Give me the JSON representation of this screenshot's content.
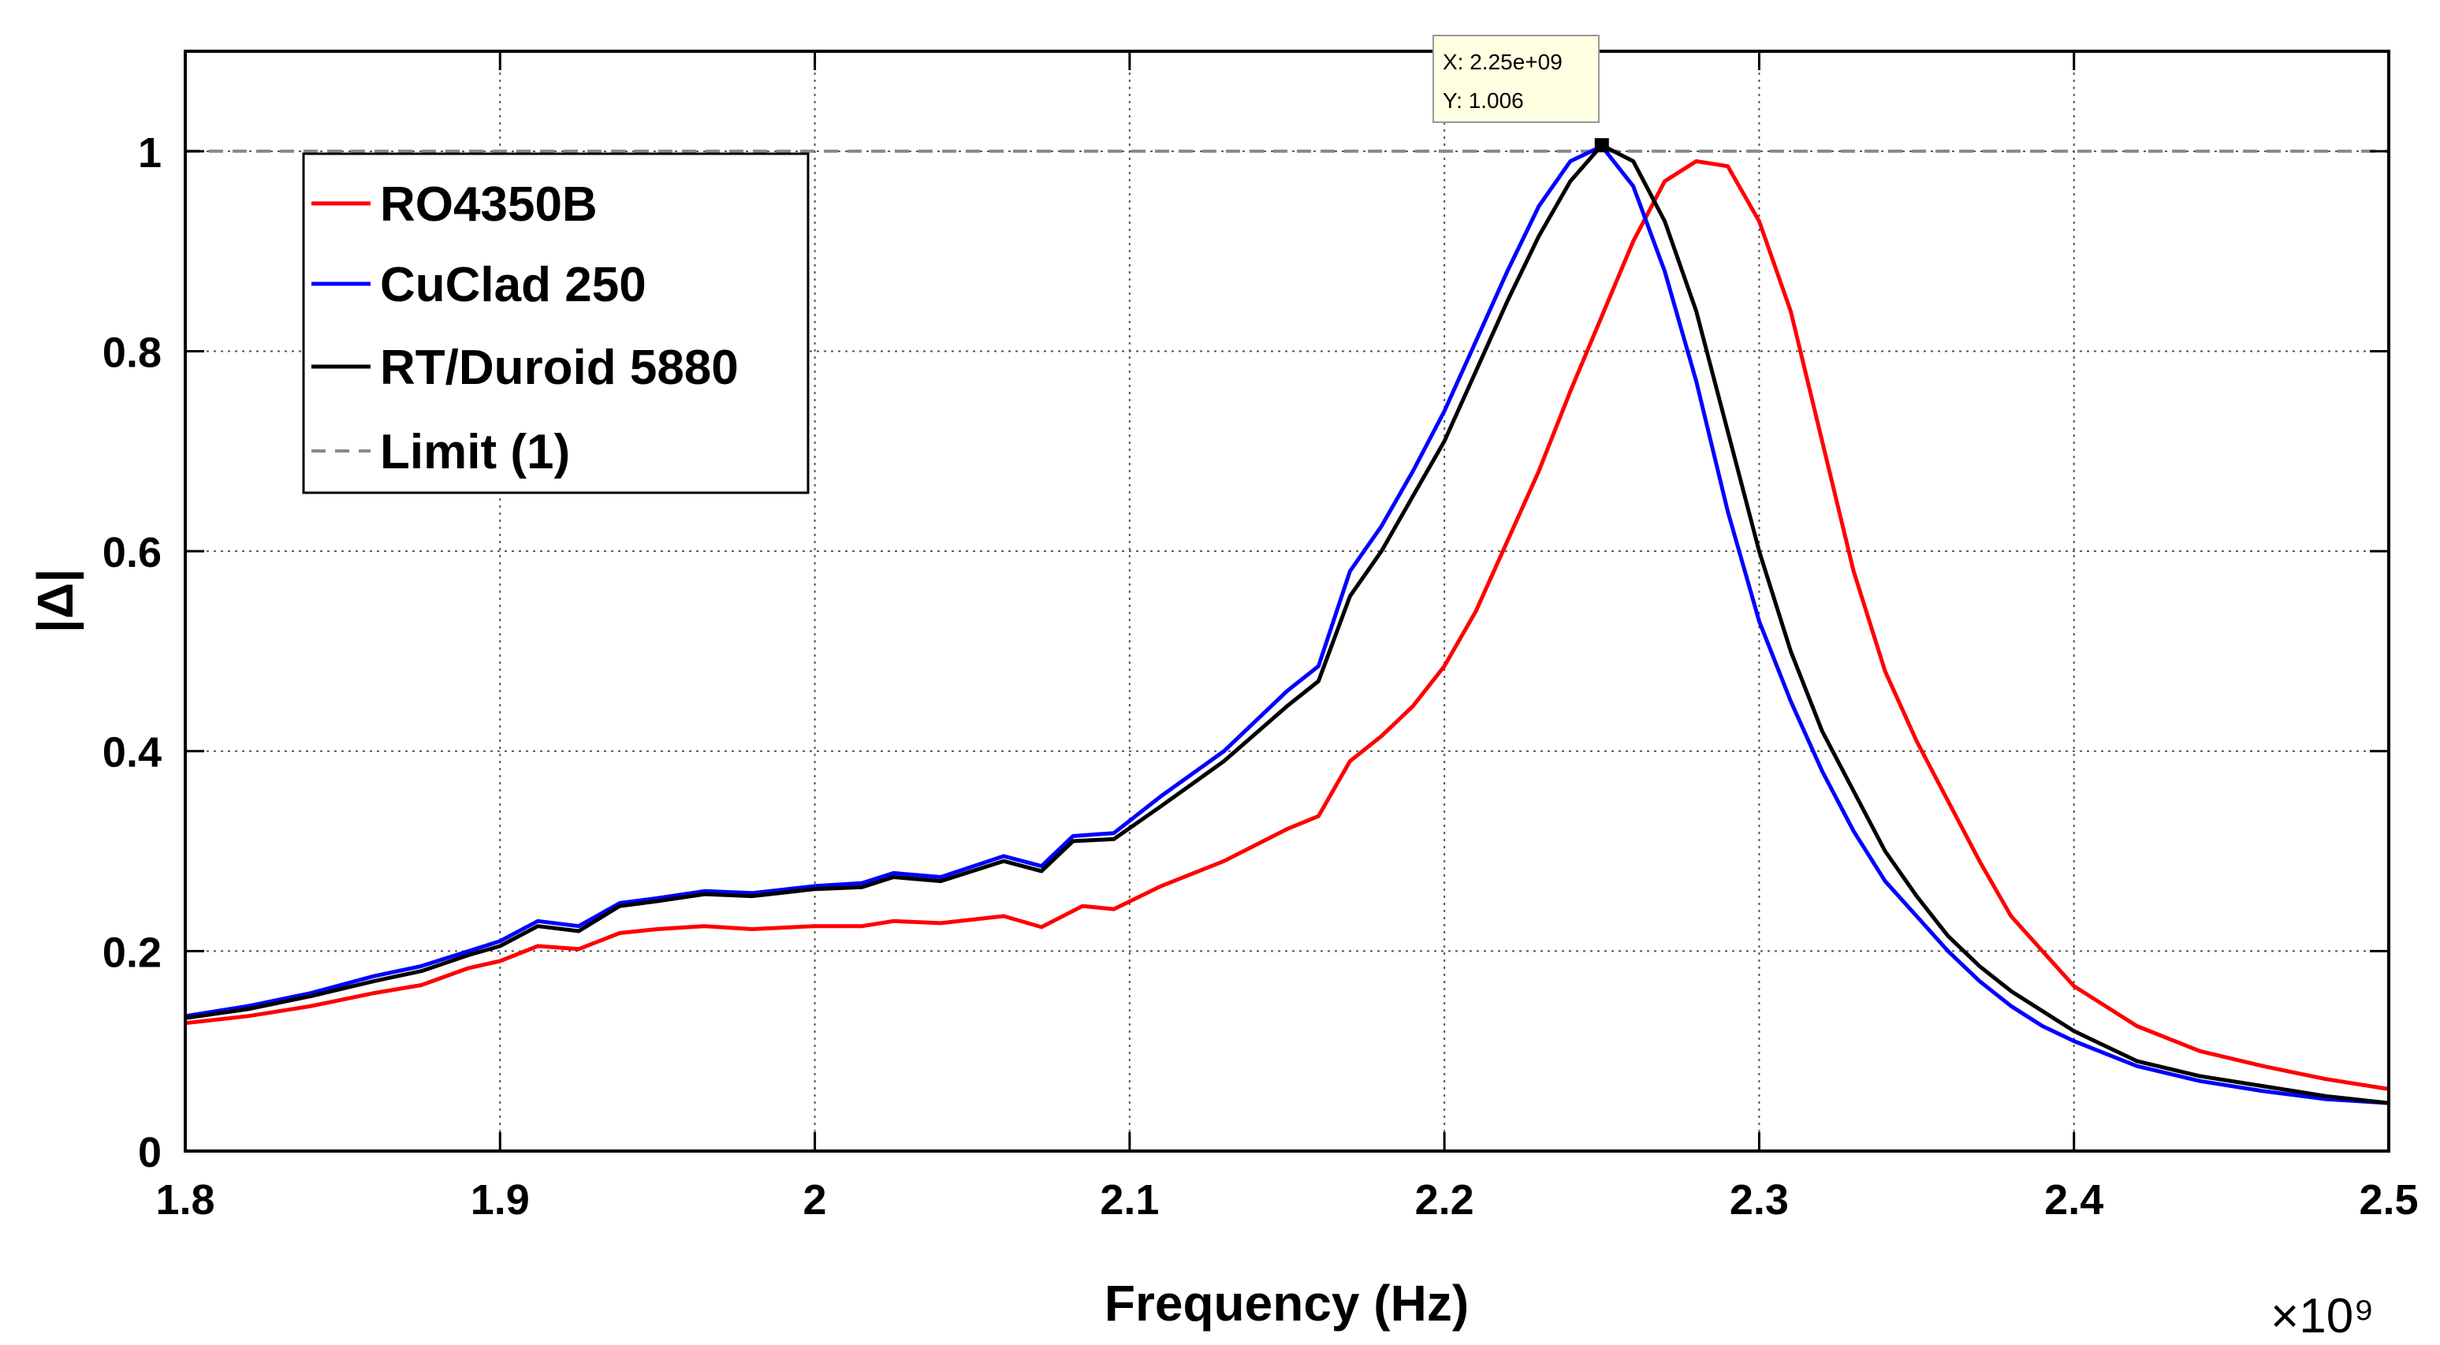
{
  "chart_data": {
    "type": "line",
    "xlabel": "Frequency (Hz)",
    "ylabel": "|Δ|",
    "x_multiplier_label": "×10⁹",
    "xlim": [
      1.8,
      2.5
    ],
    "ylim": [
      0,
      1.1
    ],
    "xticks": [
      1.8,
      1.9,
      2.0,
      2.1,
      2.2,
      2.3,
      2.4,
      2.5
    ],
    "xtick_labels": [
      "1.8",
      "1.9",
      "2",
      "2.1",
      "2.2",
      "2.3",
      "2.4",
      "2.5"
    ],
    "yticks": [
      0,
      0.2,
      0.4,
      0.6,
      0.8,
      1.0
    ],
    "ytick_labels": [
      "0",
      "0.2",
      "0.4",
      "0.6",
      "0.8",
      "1"
    ],
    "grid": true,
    "legend_position": "top-left",
    "series": [
      {
        "name": "RO4350B",
        "color": "#ff0000",
        "style": "solid",
        "x": [
          1.8,
          1.82,
          1.84,
          1.86,
          1.875,
          1.89,
          1.9,
          1.912,
          1.925,
          1.938,
          1.95,
          1.965,
          1.98,
          2.0,
          2.015,
          2.025,
          2.04,
          2.06,
          2.072,
          2.085,
          2.095,
          2.11,
          2.13,
          2.15,
          2.16,
          2.17,
          2.18,
          2.19,
          2.2,
          2.21,
          2.22,
          2.23,
          2.24,
          2.25,
          2.26,
          2.27,
          2.28,
          2.29,
          2.3,
          2.31,
          2.32,
          2.33,
          2.34,
          2.35,
          2.36,
          2.37,
          2.38,
          2.39,
          2.4,
          2.42,
          2.44,
          2.46,
          2.48,
          2.5
        ],
        "y": [
          0.128,
          0.135,
          0.145,
          0.158,
          0.166,
          0.183,
          0.19,
          0.205,
          0.202,
          0.218,
          0.222,
          0.225,
          0.222,
          0.225,
          0.225,
          0.23,
          0.228,
          0.235,
          0.224,
          0.245,
          0.242,
          0.265,
          0.29,
          0.322,
          0.335,
          0.39,
          0.415,
          0.445,
          0.485,
          0.54,
          0.61,
          0.68,
          0.76,
          0.835,
          0.91,
          0.97,
          0.99,
          0.985,
          0.93,
          0.84,
          0.71,
          0.58,
          0.48,
          0.41,
          0.35,
          0.29,
          0.235,
          0.2,
          0.165,
          0.125,
          0.1,
          0.085,
          0.072,
          0.062
        ]
      },
      {
        "name": "CuClad 250",
        "color": "#0000ff",
        "style": "solid",
        "x": [
          1.8,
          1.82,
          1.84,
          1.86,
          1.875,
          1.89,
          1.9,
          1.912,
          1.925,
          1.938,
          1.95,
          1.965,
          1.98,
          2.0,
          2.015,
          2.025,
          2.04,
          2.06,
          2.072,
          2.082,
          2.095,
          2.11,
          2.13,
          2.15,
          2.16,
          2.17,
          2.18,
          2.19,
          2.2,
          2.21,
          2.22,
          2.23,
          2.24,
          2.25,
          2.26,
          2.27,
          2.28,
          2.29,
          2.3,
          2.31,
          2.32,
          2.33,
          2.34,
          2.35,
          2.36,
          2.37,
          2.38,
          2.39,
          2.4,
          2.42,
          2.44,
          2.46,
          2.48,
          2.5
        ],
        "y": [
          0.135,
          0.145,
          0.158,
          0.175,
          0.185,
          0.2,
          0.21,
          0.23,
          0.225,
          0.248,
          0.253,
          0.26,
          0.258,
          0.265,
          0.268,
          0.278,
          0.274,
          0.295,
          0.285,
          0.315,
          0.318,
          0.355,
          0.4,
          0.46,
          0.485,
          0.58,
          0.625,
          0.68,
          0.74,
          0.81,
          0.88,
          0.945,
          0.99,
          1.005,
          0.965,
          0.88,
          0.77,
          0.64,
          0.53,
          0.45,
          0.38,
          0.32,
          0.27,
          0.235,
          0.2,
          0.17,
          0.145,
          0.125,
          0.11,
          0.085,
          0.07,
          0.06,
          0.052,
          0.048
        ]
      },
      {
        "name": "RT/Duroid 5880",
        "color": "#000000",
        "style": "solid",
        "x": [
          1.8,
          1.82,
          1.84,
          1.86,
          1.875,
          1.89,
          1.9,
          1.912,
          1.925,
          1.938,
          1.95,
          1.965,
          1.98,
          2.0,
          2.015,
          2.025,
          2.04,
          2.06,
          2.072,
          2.082,
          2.095,
          2.11,
          2.13,
          2.15,
          2.16,
          2.17,
          2.18,
          2.19,
          2.2,
          2.21,
          2.22,
          2.23,
          2.24,
          2.25,
          2.26,
          2.27,
          2.28,
          2.29,
          2.3,
          2.31,
          2.32,
          2.33,
          2.34,
          2.35,
          2.36,
          2.37,
          2.38,
          2.39,
          2.4,
          2.42,
          2.44,
          2.46,
          2.48,
          2.5
        ],
        "y": [
          0.133,
          0.142,
          0.155,
          0.17,
          0.18,
          0.196,
          0.205,
          0.225,
          0.22,
          0.245,
          0.25,
          0.257,
          0.255,
          0.262,
          0.264,
          0.274,
          0.27,
          0.29,
          0.28,
          0.31,
          0.312,
          0.345,
          0.39,
          0.445,
          0.47,
          0.555,
          0.6,
          0.655,
          0.71,
          0.78,
          0.85,
          0.915,
          0.97,
          1.006,
          0.99,
          0.93,
          0.84,
          0.72,
          0.6,
          0.5,
          0.42,
          0.36,
          0.3,
          0.255,
          0.215,
          0.185,
          0.16,
          0.14,
          0.12,
          0.09,
          0.075,
          0.065,
          0.055,
          0.048
        ]
      },
      {
        "name": "Limit (1)",
        "color": "#888888",
        "style": "dashed",
        "x": [
          1.8,
          2.5
        ],
        "y": [
          1.0,
          1.0
        ]
      }
    ],
    "datatip": {
      "x": 2.25,
      "y": 1.006,
      "line1": "X: 2.25e+09",
      "line2": "Y: 1.006"
    }
  }
}
